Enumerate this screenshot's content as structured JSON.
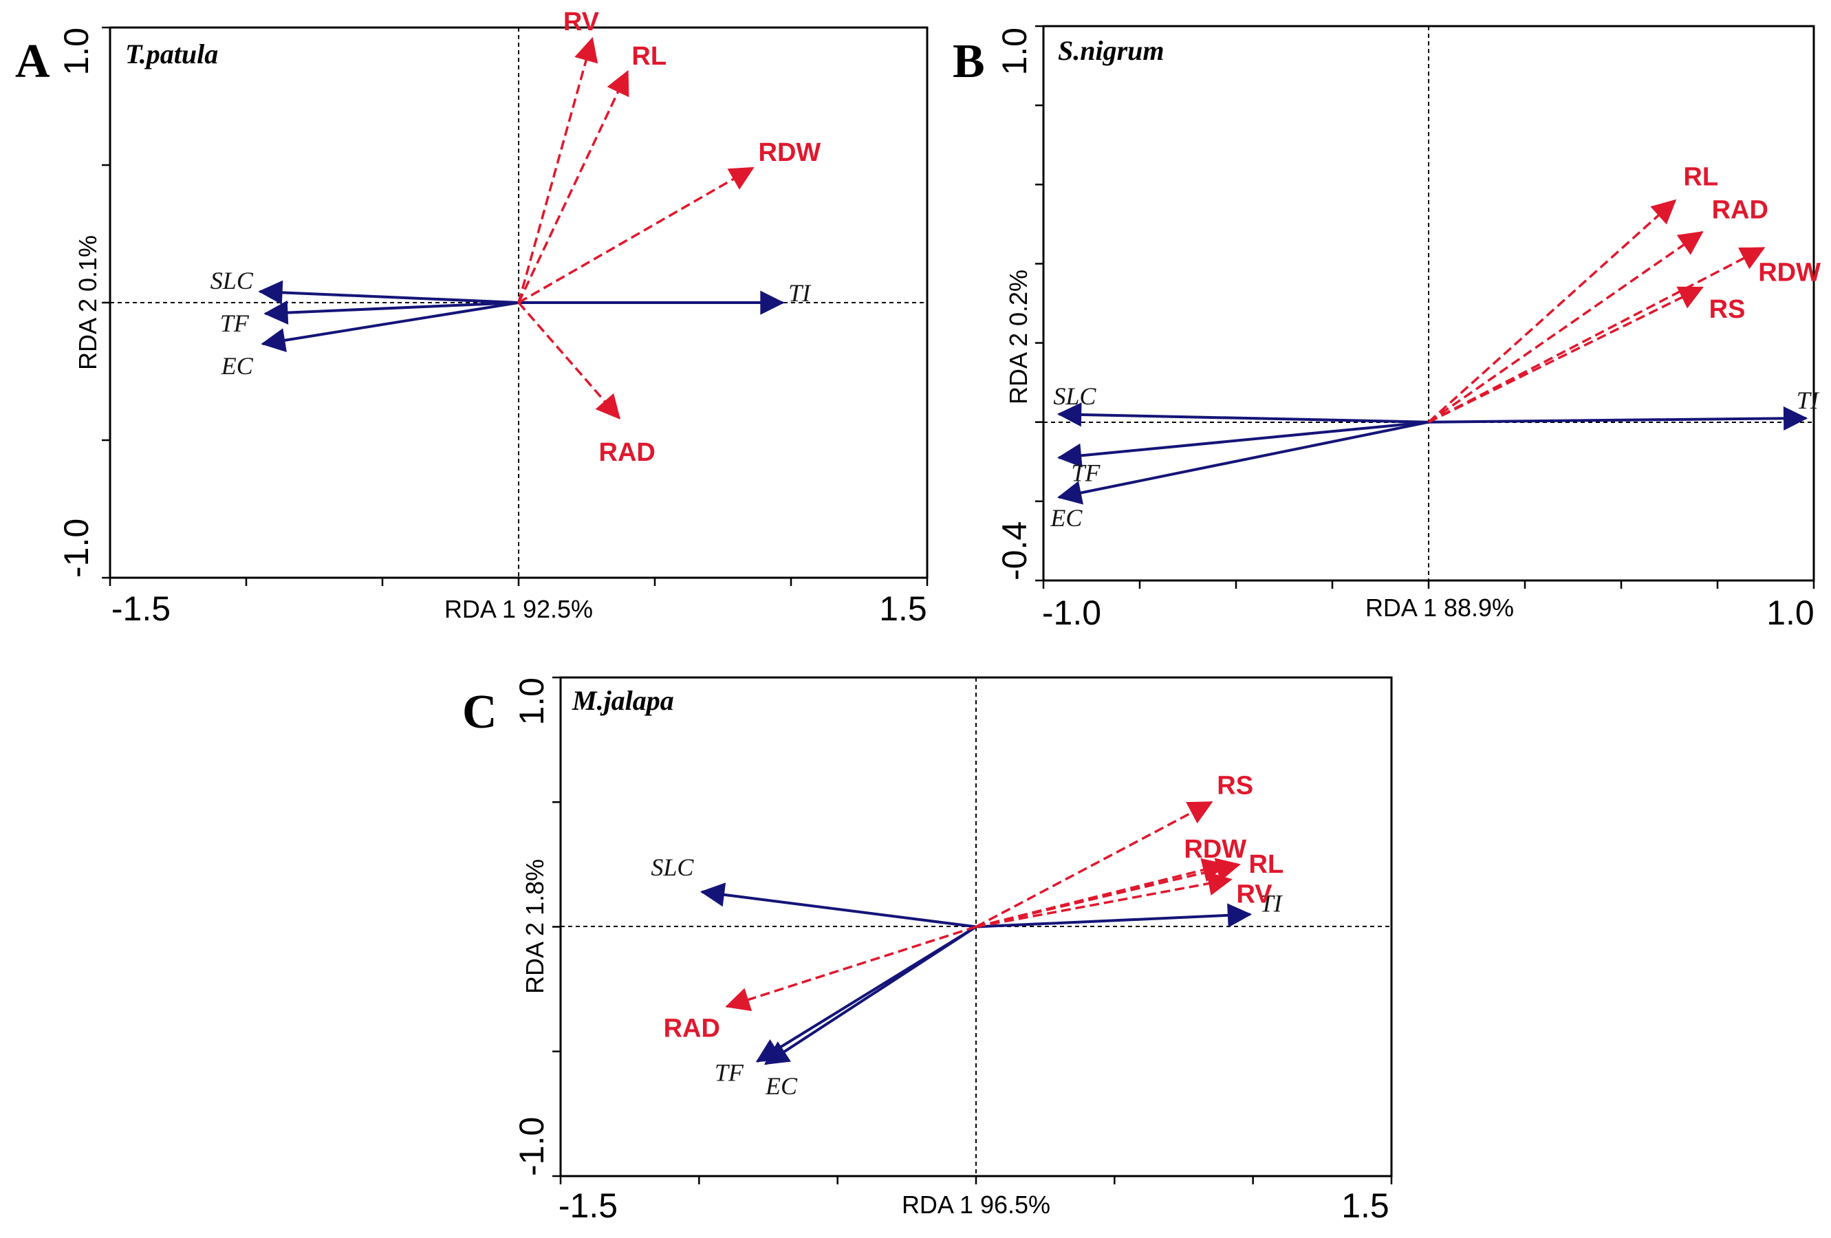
{
  "chart_data": [
    {
      "type": "rda-biplot",
      "panel": "A",
      "species": "T.patula",
      "xlabel": "RDA 1 92.5%",
      "ylabel": "RDA 2 0.1%",
      "xlim": [
        -1.5,
        1.5
      ],
      "ylim": [
        -1.0,
        1.0
      ],
      "xtick_labels": [
        "-1.5",
        "1.5"
      ],
      "ytick_labels": [
        "-1.0",
        "1.0"
      ],
      "response": [
        {
          "name": "RV",
          "x": 0.27,
          "y": 0.96
        },
        {
          "name": "RL",
          "x": 0.4,
          "y": 0.84
        },
        {
          "name": "RDW",
          "x": 0.86,
          "y": 0.49
        },
        {
          "name": "RAD",
          "x": 0.37,
          "y": -0.42
        }
      ],
      "explanatory": [
        {
          "name": "SLC",
          "x": -0.95,
          "y": 0.04
        },
        {
          "name": "TF",
          "x": -0.93,
          "y": -0.04
        },
        {
          "name": "EC",
          "x": -0.94,
          "y": -0.15
        },
        {
          "name": "TI",
          "x": 0.97,
          "y": 0.0
        }
      ]
    },
    {
      "type": "rda-biplot",
      "panel": "B",
      "species": "S.nigrum",
      "xlabel": "RDA 1 88.9%",
      "ylabel": "RDA 2 0.2%",
      "xlim": [
        -1.0,
        1.0
      ],
      "ylim": [
        -0.4,
        1.0
      ],
      "xtick_labels": [
        "-1.0",
        "1.0"
      ],
      "ytick_labels": [
        "-0.4",
        "1.0"
      ],
      "response": [
        {
          "name": "RL",
          "x": 0.64,
          "y": 0.56
        },
        {
          "name": "RAD",
          "x": 0.71,
          "y": 0.48
        },
        {
          "name": "RDW",
          "x": 0.87,
          "y": 0.44
        },
        {
          "name": "RS",
          "x": 0.71,
          "y": 0.34
        }
      ],
      "explanatory": [
        {
          "name": "SLC",
          "x": -0.96,
          "y": 0.02
        },
        {
          "name": "TF",
          "x": -0.96,
          "y": -0.09
        },
        {
          "name": "EC",
          "x": -0.96,
          "y": -0.19
        },
        {
          "name": "TI",
          "x": 0.98,
          "y": 0.01
        }
      ]
    },
    {
      "type": "rda-biplot",
      "panel": "C",
      "species": "M.jalapa",
      "xlabel": "RDA 1 96.5%",
      "ylabel": "RDA 2 1.8%",
      "xlim": [
        -1.5,
        1.5
      ],
      "ylim": [
        -1.0,
        1.0
      ],
      "xtick_labels": [
        "-1.5",
        "1.5"
      ],
      "ytick_labels": [
        "-1.0",
        "1.0"
      ],
      "response": [
        {
          "name": "RS",
          "x": 0.85,
          "y": 0.5
        },
        {
          "name": "RDW",
          "x": 0.9,
          "y": 0.25
        },
        {
          "name": "RL",
          "x": 0.95,
          "y": 0.25
        },
        {
          "name": "RV",
          "x": 0.92,
          "y": 0.19
        },
        {
          "name": "RAD",
          "x": -0.9,
          "y": -0.32
        }
      ],
      "explanatory": [
        {
          "name": "SLC",
          "x": -0.99,
          "y": 0.14
        },
        {
          "name": "TF",
          "x": -0.79,
          "y": -0.54
        },
        {
          "name": "EC",
          "x": -0.76,
          "y": -0.55
        },
        {
          "name": "TI",
          "x": 0.99,
          "y": 0.05
        }
      ]
    }
  ]
}
